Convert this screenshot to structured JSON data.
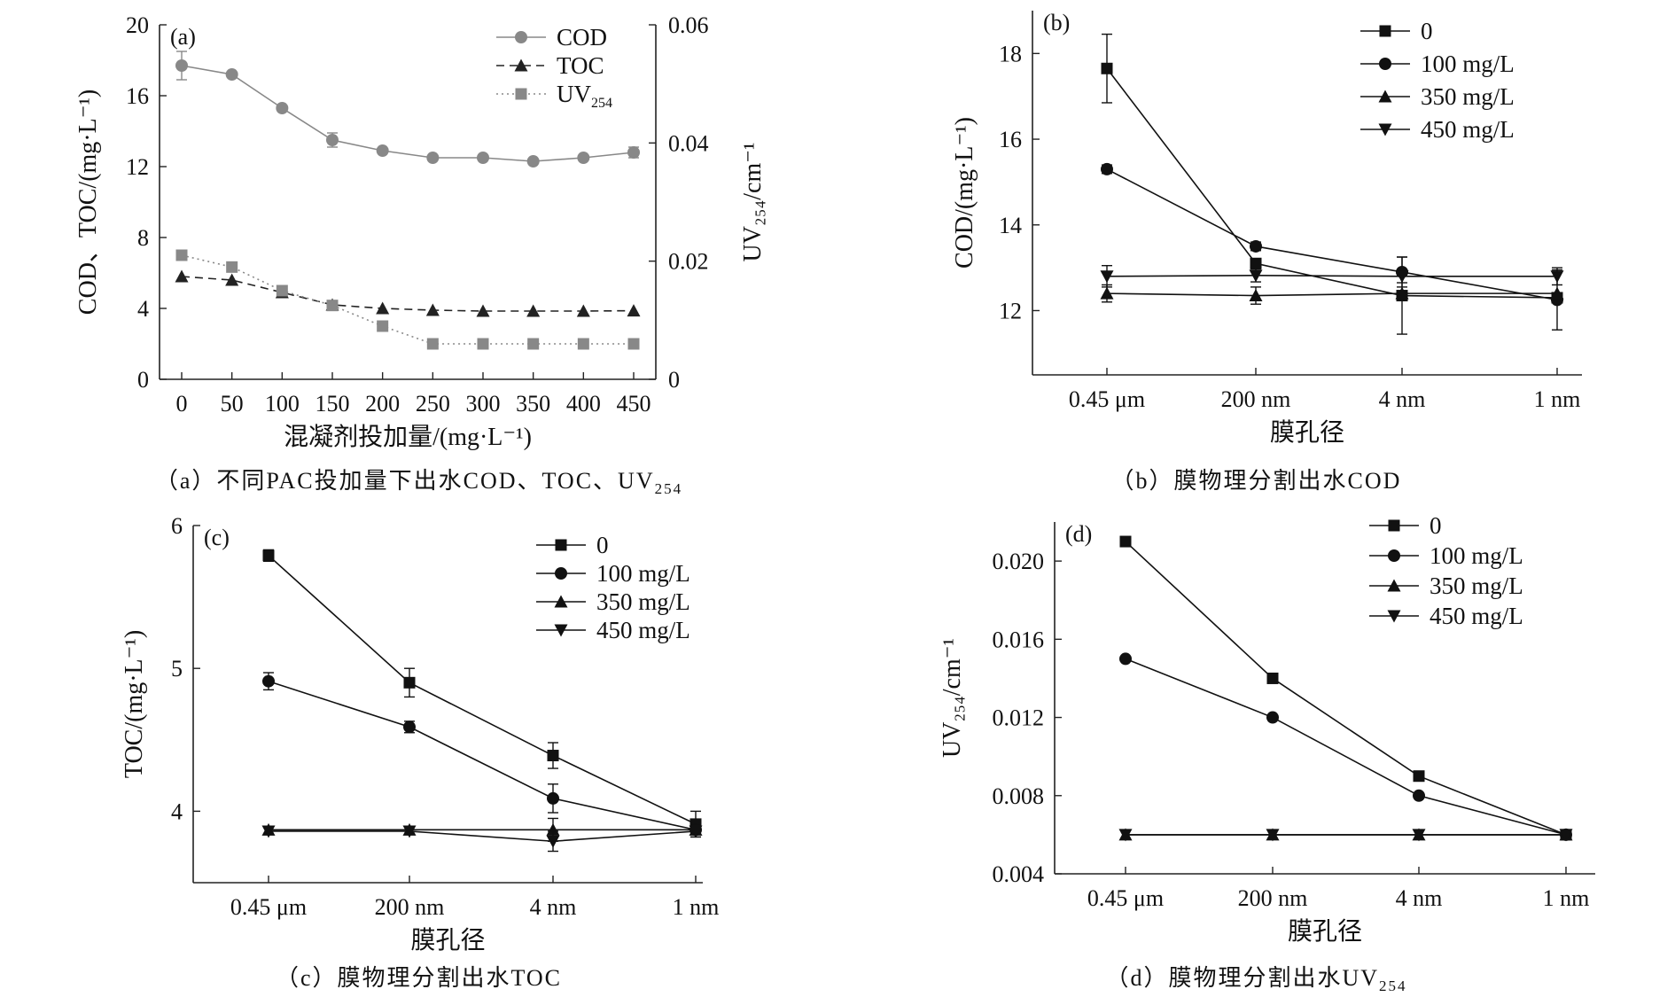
{
  "charts": [
    {
      "id": "a",
      "caption": "（a）不同PAC投加量下出水COD、TOC、UV",
      "caption_sub": "254",
      "chart_data": {
        "type": "line",
        "panel_label": "(a)",
        "x": [
          0,
          50,
          100,
          150,
          200,
          250,
          300,
          350,
          400,
          450
        ],
        "xlabel": "混凝剂投加量/(mg·L⁻¹)",
        "xlim": [
          0,
          450
        ],
        "ylabel": "COD、TOC/(mg·L⁻¹)",
        "ylim": [
          0,
          20
        ],
        "yticks": [
          0,
          4,
          8,
          12,
          16,
          20
        ],
        "y2label": "UV₂₅₄/cm⁻¹",
        "y2lim": [
          0,
          0.06
        ],
        "y2ticks": [
          "0",
          "0.02",
          "0.04",
          "0.06"
        ],
        "legend_position": "top-right",
        "series": [
          {
            "name": "COD",
            "axis": "left",
            "marker": "circle",
            "dash": "solid",
            "color": "#888888",
            "values": [
              17.7,
              17.2,
              15.3,
              13.5,
              12.9,
              12.5,
              12.5,
              12.3,
              12.5,
              12.8
            ],
            "errors": [
              0.8,
              0,
              0,
              0.4,
              0,
              0,
              0,
              0,
              0,
              0.3
            ]
          },
          {
            "name": "TOC",
            "axis": "left",
            "marker": "triangle",
            "dash": "dashed",
            "color": "#222222",
            "values": [
              5.8,
              5.6,
              4.9,
              4.2,
              4.0,
              3.9,
              3.85,
              3.85,
              3.85,
              3.87
            ],
            "errors": [
              0,
              0,
              0,
              0,
              0,
              0,
              0,
              0,
              0,
              0
            ]
          },
          {
            "name": "UV254",
            "axis": "right",
            "marker": "square",
            "dash": "dotted",
            "color": "#888888",
            "values": [
              0.021,
              0.019,
              0.015,
              0.0125,
              0.009,
              0.006,
              0.006,
              0.006,
              0.006,
              0.006
            ],
            "errors": [
              0,
              0,
              0,
              0,
              0,
              0,
              0,
              0,
              0,
              0
            ]
          }
        ]
      }
    },
    {
      "id": "b",
      "caption": "（b）膜物理分割出水COD",
      "caption_sub": "",
      "chart_data": {
        "type": "line",
        "panel_label": "(b)",
        "categories": [
          "0.45 μm",
          "200 nm",
          "4 nm",
          "1 nm"
        ],
        "xlabel": "膜孔径",
        "ylabel": "COD/(mg·L⁻¹)",
        "ylim": [
          10.5,
          19
        ],
        "yticks": [
          12,
          14,
          16,
          18
        ],
        "legend_position": "top-right",
        "series": [
          {
            "name": "0",
            "marker": "square",
            "values": [
              17.65,
              13.1,
              12.35,
              12.3
            ],
            "errors": [
              0.8,
              0,
              0.9,
              0
            ]
          },
          {
            "name": "100 mg/L",
            "marker": "circle",
            "values": [
              15.3,
              13.5,
              12.9,
              12.25
            ],
            "errors": [
              0.1,
              0.1,
              0.35,
              0.7
            ]
          },
          {
            "name": "350 mg/L",
            "marker": "triangle",
            "values": [
              12.4,
              12.35,
              12.4,
              12.4
            ],
            "errors": [
              0.2,
              0.2,
              0,
              0
            ]
          },
          {
            "name": "450 mg/L",
            "marker": "triangle-down",
            "values": [
              12.8,
              12.82,
              12.8,
              12.8
            ],
            "errors": [
              0.25,
              0.15,
              0.15,
              0.2
            ]
          }
        ]
      }
    },
    {
      "id": "c",
      "caption": "（c）膜物理分割出水TOC",
      "caption_sub": "",
      "chart_data": {
        "type": "line",
        "panel_label": "(c)",
        "categories": [
          "0.45 μm",
          "200 nm",
          "4 nm",
          "1 nm"
        ],
        "xlabel": "膜孔径",
        "ylabel": "TOC/(mg·L⁻¹)",
        "ylim": [
          3.5,
          6
        ],
        "yticks": [
          4,
          5,
          6
        ],
        "legend_position": "top-right",
        "series": [
          {
            "name": "0",
            "marker": "square",
            "values": [
              5.79,
              4.9,
              4.39,
              3.91
            ],
            "errors": [
              0.04,
              0.1,
              0.09,
              0.09
            ]
          },
          {
            "name": "100 mg/L",
            "marker": "circle",
            "values": [
              4.91,
              4.59,
              4.09,
              3.87
            ],
            "errors": [
              0.06,
              0.04,
              0.1,
              0
            ]
          },
          {
            "name": "350 mg/L",
            "marker": "triangle",
            "values": [
              3.87,
              3.87,
              3.87,
              3.87
            ],
            "errors": [
              0,
              0,
              0.08,
              0
            ]
          },
          {
            "name": "450 mg/L",
            "marker": "triangle-down",
            "values": [
              3.86,
              3.86,
              3.79,
              3.86
            ],
            "errors": [
              0,
              0,
              0.07,
              0.04
            ]
          }
        ]
      }
    },
    {
      "id": "d",
      "caption": "（d）膜物理分割出水UV",
      "caption_sub": "254",
      "chart_data": {
        "type": "line",
        "panel_label": "(d)",
        "categories": [
          "0.45 μm",
          "200 nm",
          "4 nm",
          "1 nm"
        ],
        "xlabel": "膜孔径",
        "ylabel": "UV₂₅₄/cm⁻¹",
        "ylim": [
          0.004,
          0.022
        ],
        "yticks": [
          "0.004",
          "0.008",
          "0.012",
          "0.016",
          "0.020"
        ],
        "legend_position": "top-right",
        "series": [
          {
            "name": "0",
            "marker": "square",
            "values": [
              0.021,
              0.014,
              0.009,
              0.006
            ],
            "errors": [
              0,
              0,
              0,
              0
            ]
          },
          {
            "name": "100 mg/L",
            "marker": "circle",
            "values": [
              0.015,
              0.012,
              0.008,
              0.006
            ],
            "errors": [
              0,
              0,
              0,
              0
            ]
          },
          {
            "name": "350 mg/L",
            "marker": "triangle",
            "values": [
              0.006,
              0.006,
              0.006,
              0.006
            ],
            "errors": [
              0,
              0,
              0,
              0
            ]
          },
          {
            "name": "450 mg/L",
            "marker": "triangle-down",
            "values": [
              0.006,
              0.006,
              0.006,
              0.006
            ],
            "errors": [
              0,
              0,
              0,
              0
            ]
          }
        ]
      }
    }
  ]
}
